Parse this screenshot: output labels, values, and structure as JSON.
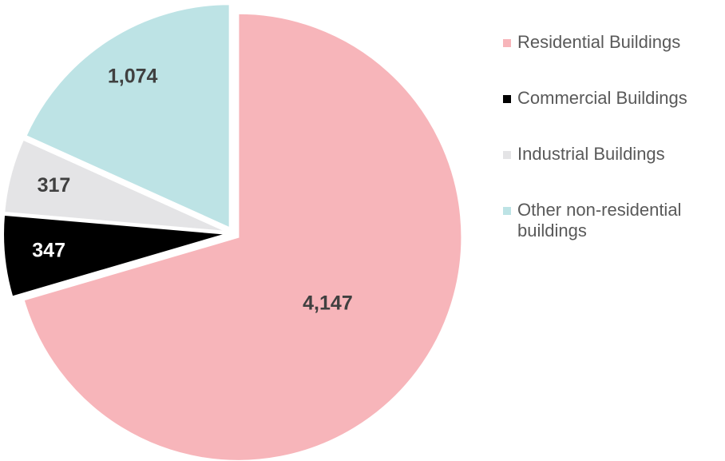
{
  "chart_data": {
    "type": "pie",
    "categories": [
      "Residential Buildings",
      "Commercial Buildings",
      "Industrial Buildings",
      "Other non-residential buildings"
    ],
    "values": [
      4147,
      347,
      317,
      1074
    ],
    "value_labels": [
      "4,147",
      "347",
      "317",
      "1,074"
    ],
    "colors": [
      "#f7b5ba",
      "#000000",
      "#e4e4e6",
      "#bde3e5"
    ],
    "legend": "right"
  }
}
